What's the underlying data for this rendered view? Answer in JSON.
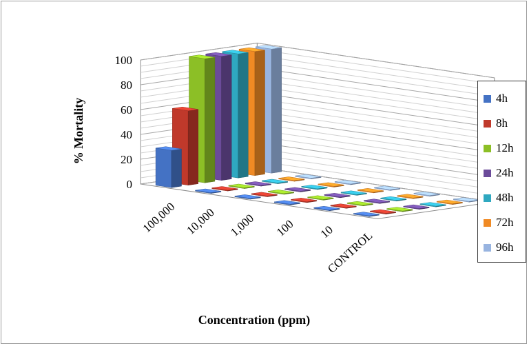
{
  "chart_data": {
    "type": "bar",
    "variant": "3d-clustered-depth",
    "categories": [
      "100,000",
      "10,000",
      "1,000",
      "100",
      "10",
      "CONTROL"
    ],
    "series": [
      {
        "name": "4h",
        "color": "#4472c4",
        "values": [
          30,
          0,
          0,
          0,
          0,
          0
        ]
      },
      {
        "name": "8h",
        "color": "#c0392b",
        "values": [
          60,
          0,
          0,
          0,
          0,
          0
        ]
      },
      {
        "name": "12h",
        "color": "#8cbf26",
        "values": [
          100,
          0,
          0,
          0,
          0,
          0
        ]
      },
      {
        "name": "24h",
        "color": "#6b4b9a",
        "values": [
          100,
          0,
          0,
          0,
          0,
          0
        ]
      },
      {
        "name": "48h",
        "color": "#2fa8c0",
        "values": [
          100,
          0,
          0,
          0,
          0,
          0
        ]
      },
      {
        "name": "72h",
        "color": "#f08a24",
        "values": [
          100,
          0,
          0,
          0,
          0,
          0
        ]
      },
      {
        "name": "96h",
        "color": "#98b4e0",
        "values": [
          100,
          0,
          0,
          0,
          0,
          0
        ]
      }
    ],
    "xlabel": "Concentration (ppm)",
    "ylabel": "% Mortality",
    "ylim": [
      0,
      100
    ],
    "yticks": [
      0,
      20,
      40,
      60,
      80,
      100
    ],
    "grid": true,
    "legend_position": "right"
  }
}
